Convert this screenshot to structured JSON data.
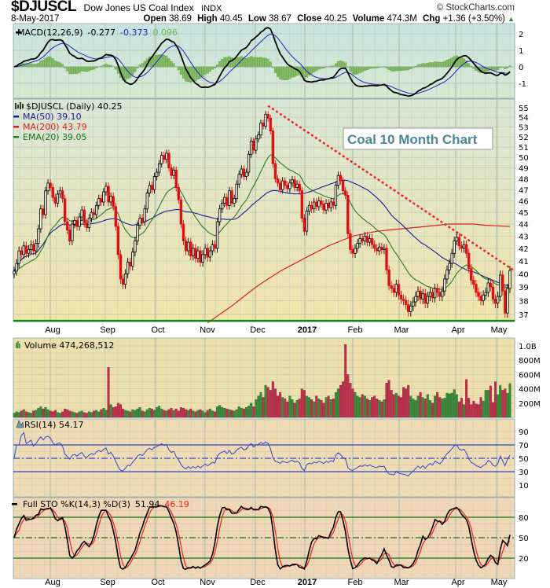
{
  "header": {
    "symbol": "$DJUSCL",
    "name": "Dow Jones US Coal Index",
    "exchange": "INDX",
    "copyright": "© StockCharts.com",
    "date": "8-May-2017",
    "open_label": "Open",
    "open": "38.69",
    "high_label": "High",
    "high": "40.45",
    "low_label": "Low",
    "low": "38.67",
    "close_label": "Close",
    "close": "40.25",
    "volume_label": "Volume",
    "volume": "474.3M",
    "chg_label": "Chg",
    "chg": "+1.36 (+3.50%)",
    "chg_direction": "up"
  },
  "chart_data": [
    {
      "type": "line",
      "panel": "MACD",
      "legend": {
        "label": "MACD(12,26,9)",
        "macd": "-0.277",
        "signal": "-0.373",
        "histogram": "0.096"
      },
      "colors": {
        "macd": "#000000",
        "signal": "#2222cc",
        "histogram": "#66aa44"
      },
      "yticks": [
        "2",
        "1",
        "0",
        "-1"
      ],
      "ylim": [
        -1.9,
        2.6
      ]
    },
    {
      "type": "candlestick",
      "panel": "price",
      "scale": "log",
      "legend": {
        "title": "$DJUSCL (Daily) 40.25",
        "ma50": "MA(50) 39.10",
        "ma200": "MA(200) 43.79",
        "ema20": "EMA(20) 39.05"
      },
      "colors": {
        "ma50": "#1a1a99",
        "ma200": "#e02020",
        "ema20": "#2a7a2a",
        "down": "#e01010",
        "trendline": "#ee2222",
        "support": "#118811"
      },
      "yticks": [
        "55",
        "54",
        "53",
        "52",
        "51",
        "50",
        "49",
        "48",
        "47",
        "46",
        "45",
        "44",
        "43",
        "42",
        "41",
        "40",
        "39",
        "38",
        "37"
      ],
      "ylim": [
        36.4,
        55.8
      ],
      "xticks": [
        "Aug",
        "Sep",
        "Oct",
        "Nov",
        "Dec",
        "2017",
        "Feb",
        "Mar",
        "Apr",
        "May"
      ],
      "annotation": "Coal 10 Month Chart",
      "trendline": [
        55.2,
        40.3
      ],
      "support": 36.55,
      "close": [
        40.2,
        40.8,
        41.8,
        41.5,
        42.2,
        41.6,
        41.9,
        42.3,
        41.8,
        42.4,
        43.6,
        45.3,
        44.8,
        46.9,
        47.6,
        47.2,
        46.3,
        45.8,
        46.6,
        46.9,
        46.2,
        44.2,
        43.5,
        42.6,
        44.0,
        44.3,
        43.8,
        44.6,
        45.2,
        44.1,
        43.7,
        44.5,
        45.0,
        44.8,
        45.6,
        46.2,
        45.9,
        46.8,
        47.3,
        45.9,
        46.4,
        45.5,
        43.8,
        41.5,
        39.6,
        39.2,
        40.0,
        40.9,
        40.6,
        41.7,
        42.6,
        43.9,
        44.5,
        44.2,
        45.3,
        46.7,
        47.4,
        47.0,
        48.2,
        48.6,
        49.4,
        50.2,
        49.8,
        50.4,
        49.0,
        48.3,
        48.8,
        47.2,
        46.1,
        44.0,
        42.6,
        41.8,
        42.5,
        41.4,
        42.0,
        41.2,
        41.8,
        40.9,
        41.5,
        42.0,
        41.3,
        41.8,
        42.3,
        42.0,
        44.2,
        45.3,
        45.8,
        46.3,
        45.6,
        46.9,
        45.8,
        46.2,
        47.5,
        48.4,
        48.9,
        48.2,
        48.6,
        50.3,
        51.6,
        50.7,
        51.8,
        52.2,
        53.4,
        53.1,
        54.3,
        53.9,
        52.6,
        49.4,
        48.0,
        47.6,
        47.0,
        47.8,
        47.4,
        47.1,
        47.6,
        47.9,
        47.2,
        47.5,
        46.9,
        44.5,
        43.4,
        45.1,
        45.6,
        45.3,
        45.9,
        45.5,
        46.0,
        45.7,
        45.2,
        45.8,
        45.4,
        45.9,
        45.6,
        47.4,
        48.3,
        47.8,
        46.9,
        46.5,
        43.2,
        41.9,
        41.6,
        42.0,
        42.4,
        42.8,
        42.6,
        43.0,
        42.5,
        42.8,
        42.3,
        42.0,
        41.8,
        42.1,
        41.9,
        42.0,
        40.3,
        39.1,
        38.9,
        38.6,
        39.2,
        38.4,
        38.1,
        38.0,
        37.7,
        37.2,
        37.6,
        37.9,
        38.3,
        38.7,
        38.1,
        38.5,
        37.8,
        38.3,
        38.6,
        38.2,
        38.9,
        38.6,
        38.3,
        38.7,
        39.6,
        40.3,
        40.8,
        41.6,
        42.6,
        42.9,
        42.2,
        42.0,
        42.3,
        41.6,
        40.4,
        39.5,
        39.2,
        38.6,
        38.3,
        38.0,
        38.4,
        38.6,
        39.3,
        39.0,
        38.1,
        37.8,
        38.3,
        39.9,
        38.7,
        37.1,
        38.89,
        40.25
      ],
      "ma200_last_values_every5": [
        36.4,
        37.0,
        37.6,
        38.3,
        39.0,
        39.6,
        40.2,
        40.7,
        41.2,
        41.7,
        42.2,
        42.6,
        43.0,
        43.2,
        43.4,
        43.5,
        43.6,
        43.7,
        43.8,
        43.9,
        44.0,
        44.0,
        44.0,
        43.9,
        43.85,
        43.79
      ]
    },
    {
      "type": "bar",
      "panel": "volume",
      "legend": "Volume 474,268,512",
      "unit": "millions",
      "colors": {
        "up": "#3a8a3a",
        "down": "#c0304a"
      },
      "yticks": [
        "1.0B",
        "800M",
        "600M",
        "400M",
        "200M"
      ],
      "ylim": [
        0,
        1100
      ],
      "values": [
        60,
        80,
        70,
        90,
        110,
        80,
        70,
        60,
        90,
        100,
        130,
        150,
        120,
        140,
        110,
        90,
        80,
        100,
        70,
        60,
        80,
        120,
        110,
        90,
        80,
        70,
        60,
        80,
        90,
        70,
        60,
        80,
        70,
        90,
        100,
        80,
        110,
        130,
        100,
        700,
        180,
        140,
        150,
        200,
        180,
        120,
        100,
        90,
        80,
        110,
        100,
        120,
        140,
        90,
        80,
        110,
        130,
        120,
        100,
        140,
        160,
        120,
        100,
        90,
        110,
        130,
        100,
        120,
        90,
        140,
        130,
        110,
        100,
        120,
        90,
        80,
        100,
        110,
        90,
        70,
        100,
        120,
        90,
        80,
        150,
        170,
        140,
        130,
        120,
        110,
        100,
        90,
        110,
        150,
        130,
        120,
        140,
        160,
        200,
        150,
        250,
        300,
        350,
        280,
        450,
        420,
        380,
        500,
        400,
        300,
        350,
        280,
        260,
        220,
        300,
        250,
        200,
        240,
        260,
        400,
        380,
        300,
        280,
        250,
        220,
        300,
        260,
        240,
        200,
        280,
        300,
        250,
        260,
        350,
        400,
        450,
        500,
        1020,
        600,
        480,
        400,
        350,
        300,
        280,
        320,
        300,
        260,
        240,
        280,
        300,
        260,
        240,
        220,
        250,
        480,
        520,
        380,
        320,
        340,
        300,
        280,
        420,
        400,
        450,
        300,
        260,
        240,
        300,
        350,
        280,
        260,
        320,
        240,
        200,
        300,
        350,
        280,
        260,
        270,
        340,
        330,
        340,
        390,
        320,
        220,
        270,
        180,
        530,
        270,
        180,
        230,
        190,
        180,
        280,
        230,
        380,
        380,
        440,
        210,
        500,
        320,
        450,
        380,
        400,
        340,
        474
      ]
    },
    {
      "type": "line",
      "panel": "RSI",
      "legend": "RSI(14) 54.17",
      "colors": {
        "line": "#3344cc"
      },
      "yticks": [
        "90",
        "70",
        "50",
        "30",
        "10"
      ],
      "ylim": [
        0,
        100
      ],
      "reference_lines": [
        70,
        50,
        30
      ]
    },
    {
      "type": "line",
      "panel": "stochastic",
      "legend": {
        "label": "Full STO %K(14,3) %D(3)",
        "k": "51.94",
        "d": "46.19"
      },
      "colors": {
        "k": "#000000",
        "d": "#ee2222",
        "ref": "#117711"
      },
      "yticks": [
        "80",
        "50",
        "20"
      ],
      "ylim": [
        0,
        100
      ],
      "reference_lines": [
        80,
        50,
        20
      ],
      "xticks": [
        "Aug",
        "Sep",
        "Oct",
        "Nov",
        "Dec",
        "2017",
        "Feb",
        "Mar",
        "Apr",
        "May"
      ]
    }
  ]
}
